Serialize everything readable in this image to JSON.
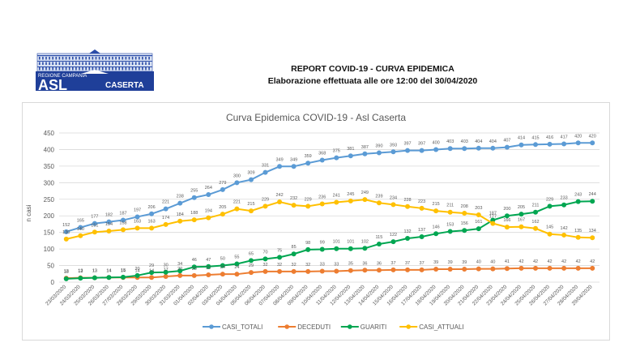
{
  "header": {
    "logo": {
      "region_text": "REGIONE CAMPANIA",
      "brand": "ASL",
      "sub": "CASERTA"
    },
    "title": "REPORT COVID-19 - CURVA EPIDEMICA",
    "subtitle": "Elaborazione effettuata alle ore 12:00 del 30/04/2020"
  },
  "colors": {
    "casi_totali": "#5b9bd5",
    "deceduti": "#ed7d31",
    "guariti": "#00a651",
    "casi_attuali": "#ffc000",
    "logo_blue": "#1f3f99"
  },
  "chart_data": {
    "type": "line",
    "title": "Curva Epidemica COVID-19 - Asl Caserta",
    "xlabel": "",
    "ylabel": "n casi",
    "ylim": [
      0,
      450
    ],
    "yticks": [
      0,
      50,
      100,
      150,
      200,
      250,
      300,
      350,
      400,
      450
    ],
    "grid": true,
    "legend": "bottom",
    "categories": [
      "23/03/2020",
      "24/03/2020",
      "25/03/2020",
      "26/03/2020",
      "27/03/2020",
      "28/03/2020",
      "29/03/2020",
      "30/03/2020",
      "31/03/2020",
      "01/04/2020",
      "02/04/2020",
      "03/04/2020",
      "04/04/2020",
      "05/04/2020",
      "06/04/2020",
      "07/04/2020",
      "08/04/2020",
      "09/04/2020",
      "10/04/2020",
      "11/04/2020",
      "12/04/2020",
      "13/04/2020",
      "14/04/2020",
      "15/04/2020",
      "16/04/2020",
      "17/04/2020",
      "18/04/2020",
      "19/04/2020",
      "20/04/2020",
      "21/04/2020",
      "22/04/2020",
      "23/04/2020",
      "24/04/2020",
      "25/04/2020",
      "26/04/2020",
      "27/04/2020",
      "28/04/2020",
      "29/04/2020"
    ],
    "series": [
      {
        "name": "CASI_TOTALI",
        "key": "casi_totali",
        "values": [
          152,
          165,
          177,
          182,
          187,
          197,
          206,
          221,
          238,
          255,
          264,
          279,
          300,
          309,
          331,
          349,
          349,
          359,
          368,
          375,
          381,
          387,
          390,
          393,
          397,
          397,
          400,
          403,
          403,
          404,
          404,
          407,
          414,
          415,
          416,
          417,
          420,
          420
        ]
      },
      {
        "name": "DECEDUTI",
        "key": "deceduti",
        "values": [
          12,
          13,
          13,
          14,
          14,
          14,
          14,
          17,
          20,
          20,
          22,
          24,
          24,
          29,
          32,
          32,
          32,
          32,
          33,
          33,
          35,
          36,
          36,
          37,
          37,
          37,
          39,
          39,
          39,
          40,
          40,
          41,
          42,
          42,
          42,
          42,
          42,
          42
        ]
      },
      {
        "name": "GUARITI",
        "key": "guariti",
        "values": [
          10,
          12,
          13,
          14,
          15,
          20,
          29,
          30,
          34,
          46,
          47,
          50,
          55,
          65,
          70,
          75,
          85,
          98,
          99,
          101,
          101,
          102,
          115,
          122,
          132,
          137,
          146,
          153,
          156,
          161,
          187,
          200,
          205,
          211,
          229,
          233,
          243,
          244
        ]
      },
      {
        "name": "CASI_ATTUALI",
        "key": "casi_attuali",
        "values": [
          130,
          140,
          151,
          154,
          158,
          163,
          163,
          174,
          184,
          188,
          194,
          205,
          221,
          215,
          229,
          242,
          232,
          229,
          236,
          241,
          245,
          249,
          239,
          234,
          228,
          223,
          215,
          211,
          208,
          203,
          177,
          166,
          167,
          162,
          145,
          142,
          135,
          134
        ]
      }
    ]
  }
}
